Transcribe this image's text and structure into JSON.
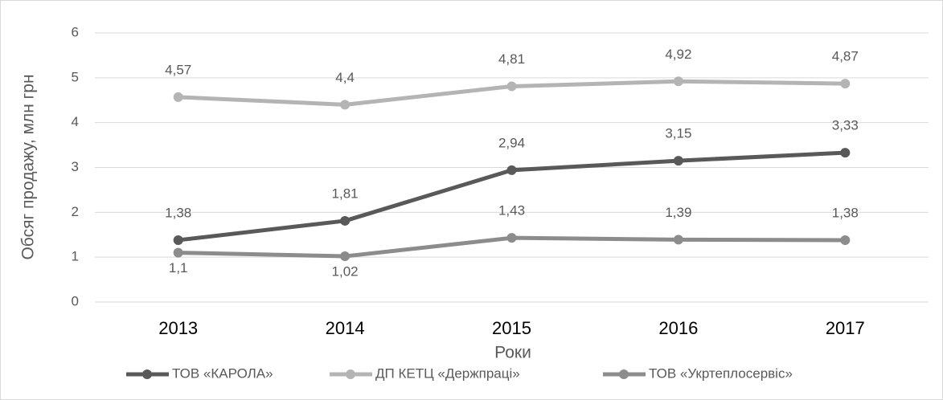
{
  "chart_data": {
    "type": "line",
    "y_label": "Обсяг продажу, млн грн",
    "x_label": "Роки",
    "categories": [
      "2013",
      "2014",
      "2015",
      "2016",
      "2017"
    ],
    "ylim": [
      0,
      6
    ],
    "yticks": [
      0,
      1,
      2,
      3,
      4,
      5,
      6
    ],
    "grid": true,
    "series": [
      {
        "name": "ТОВ «КАРОЛА»",
        "color": "#595959",
        "values": [
          1.38,
          1.81,
          2.94,
          3.15,
          3.33
        ],
        "value_labels": [
          "1,38",
          "1,81",
          "2,94",
          "3,15",
          "3,33"
        ]
      },
      {
        "name": "ДП КЕТЦ «Держпраці»",
        "color": "#b4b4b4",
        "values": [
          4.57,
          4.4,
          4.81,
          4.92,
          4.87
        ],
        "value_labels": [
          "4,57",
          "4,4",
          "4,81",
          "4,92",
          "4,87"
        ]
      },
      {
        "name": "ТОВ «Укртеплосервіс»",
        "color": "#8c8c8c",
        "values": [
          1.1,
          1.02,
          1.43,
          1.39,
          1.38
        ],
        "value_labels": [
          "1,1",
          "1,02",
          "1,43",
          "1,39",
          "1,38"
        ]
      }
    ]
  }
}
